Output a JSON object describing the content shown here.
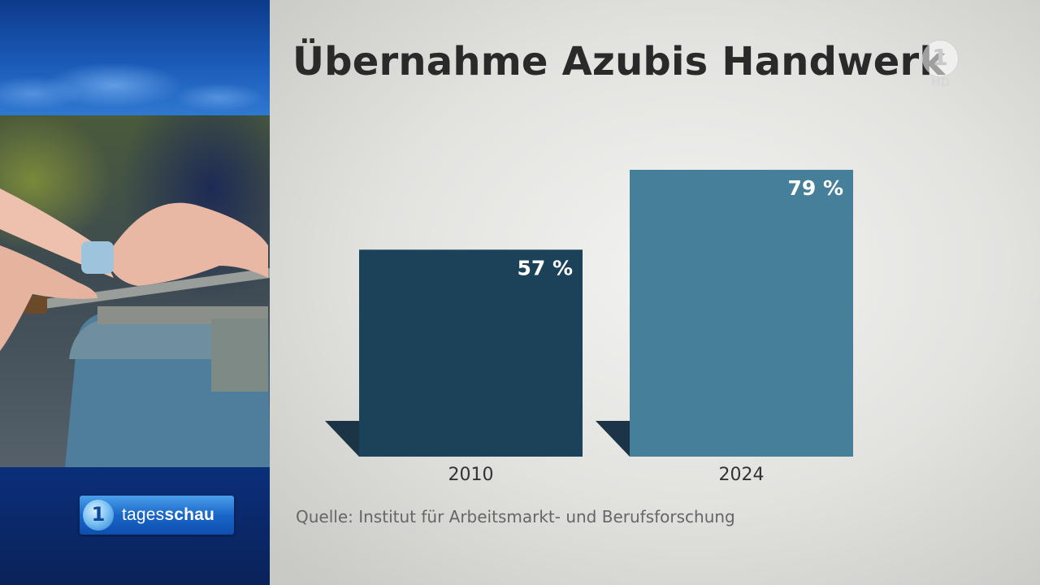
{
  "broadcast": {
    "program_name_part1": "tages",
    "program_name_part2": "schau",
    "logo_glyph": "1",
    "channel_badge": "HD"
  },
  "colors": {
    "bar_2010": "#1c4259",
    "bar_2024": "#457f99",
    "bar_shadow": "#1b3546",
    "title": "#2a2a2a",
    "label": "#333333",
    "source": "#666666"
  },
  "chart_data": {
    "type": "bar",
    "title": "Übernahme Azubis Handwerk",
    "categories": [
      "2010",
      "2024"
    ],
    "values": [
      57,
      79
    ],
    "value_labels": [
      "57 %",
      "79 %"
    ],
    "ylim": [
      0,
      100
    ],
    "xlabel": "",
    "ylabel": "",
    "grid": false,
    "legend": "none",
    "source": "Quelle: Institut für Arbeitsmarkt- und Berufsforschung"
  }
}
